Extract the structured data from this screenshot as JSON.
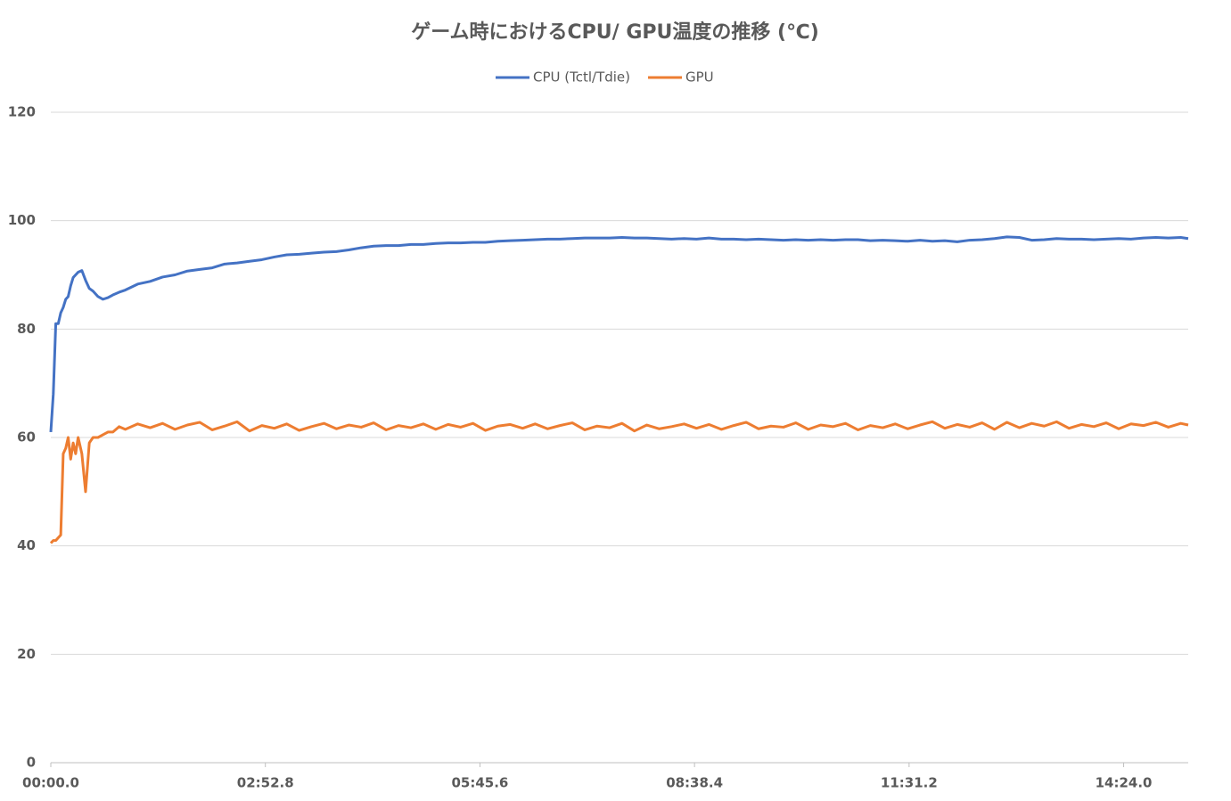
{
  "chart_data": {
    "type": "line",
    "title": "ゲーム時におけるCPU/ GPU温度の推移 (℃)",
    "x": [
      0,
      2,
      4,
      6,
      8,
      10,
      12,
      14,
      16,
      18,
      20,
      22,
      25,
      28,
      31,
      34,
      38,
      42,
      46,
      50,
      55,
      60,
      70,
      80,
      90,
      100,
      110,
      120,
      130,
      140,
      150,
      160,
      170,
      180,
      190,
      200,
      210,
      220,
      230,
      240,
      250,
      260,
      270,
      280,
      290,
      300,
      310,
      320,
      330,
      340,
      350,
      360,
      370,
      380,
      390,
      400,
      410,
      420,
      430,
      440,
      450,
      460,
      470,
      480,
      490,
      500,
      510,
      520,
      530,
      540,
      550,
      560,
      570,
      580,
      590,
      600,
      610,
      620,
      630,
      640,
      650,
      660,
      670,
      680,
      690,
      700,
      710,
      720,
      730,
      740,
      750,
      760,
      770,
      780,
      790,
      800,
      810,
      820,
      830,
      840,
      850,
      860,
      870,
      880,
      890,
      900,
      910,
      916
    ],
    "series": [
      {
        "name": "CPU (Tctl/Tdie)",
        "color": "#4472c4",
        "values": [
          61,
          68,
          81,
          81,
          83,
          84,
          85.5,
          86,
          88,
          89.5,
          90,
          90.5,
          90.8,
          89,
          87.5,
          87,
          86,
          85.5,
          85.8,
          86.3,
          86.8,
          87.2,
          88.3,
          88.8,
          89.6,
          90,
          90.7,
          91,
          91.3,
          92,
          92.2,
          92.5,
          92.8,
          93.3,
          93.7,
          93.8,
          94,
          94.2,
          94.3,
          94.6,
          95,
          95.3,
          95.4,
          95.4,
          95.6,
          95.6,
          95.8,
          95.9,
          95.9,
          96,
          96,
          96.2,
          96.3,
          96.4,
          96.5,
          96.6,
          96.6,
          96.7,
          96.8,
          96.8,
          96.8,
          96.9,
          96.8,
          96.8,
          96.7,
          96.6,
          96.7,
          96.6,
          96.8,
          96.6,
          96.6,
          96.5,
          96.6,
          96.5,
          96.4,
          96.5,
          96.4,
          96.5,
          96.4,
          96.5,
          96.5,
          96.3,
          96.4,
          96.3,
          96.2,
          96.4,
          96.2,
          96.3,
          96.1,
          96.4,
          96.5,
          96.7,
          97,
          96.9,
          96.4,
          96.5,
          96.7,
          96.6,
          96.6,
          96.5,
          96.6,
          96.7,
          96.6,
          96.8,
          96.9,
          96.8,
          96.9,
          96.7
        ]
      },
      {
        "name": "GPU",
        "color": "#ed7d31",
        "values": [
          40.5,
          41,
          41,
          41.5,
          42,
          57,
          58,
          60,
          56,
          59,
          57,
          60,
          57,
          50,
          59,
          60,
          60,
          60.5,
          61,
          61,
          62,
          61.5,
          62.5,
          61.8,
          62.6,
          61.5,
          62.3,
          62.8,
          61.4,
          62.1,
          62.9,
          61.2,
          62.2,
          61.7,
          62.5,
          61.3,
          62,
          62.6,
          61.6,
          62.3,
          61.9,
          62.7,
          61.4,
          62.2,
          61.8,
          62.5,
          61.5,
          62.4,
          61.9,
          62.6,
          61.3,
          62.1,
          62.4,
          61.7,
          62.5,
          61.6,
          62.2,
          62.7,
          61.4,
          62.1,
          61.8,
          62.6,
          61.2,
          62.3,
          61.6,
          62,
          62.5,
          61.7,
          62.4,
          61.5,
          62.2,
          62.8,
          61.6,
          62.1,
          61.9,
          62.7,
          61.5,
          62.3,
          62,
          62.6,
          61.4,
          62.2,
          61.8,
          62.5,
          61.6,
          62.3,
          62.9,
          61.7,
          62.4,
          61.9,
          62.7,
          61.5,
          62.8,
          61.8,
          62.6,
          62.1,
          62.9,
          61.7,
          62.4,
          62,
          62.7,
          61.6,
          62.5,
          62.2,
          62.8,
          61.9,
          62.6,
          62.3
        ]
      }
    ],
    "xlim": [
      0,
      916
    ],
    "xticks": [
      {
        "value": 0,
        "label": "00:00.0"
      },
      {
        "value": 172.8,
        "label": "02:52.8"
      },
      {
        "value": 345.6,
        "label": "05:45.6"
      },
      {
        "value": 518.4,
        "label": "08:38.4"
      },
      {
        "value": 691.2,
        "label": "11:31.2"
      },
      {
        "value": 864,
        "label": "14:24.0"
      }
    ],
    "ylim": [
      0,
      120
    ],
    "yticks": [
      0,
      20,
      40,
      60,
      80,
      100,
      120
    ],
    "grid": true,
    "legend": "top"
  }
}
